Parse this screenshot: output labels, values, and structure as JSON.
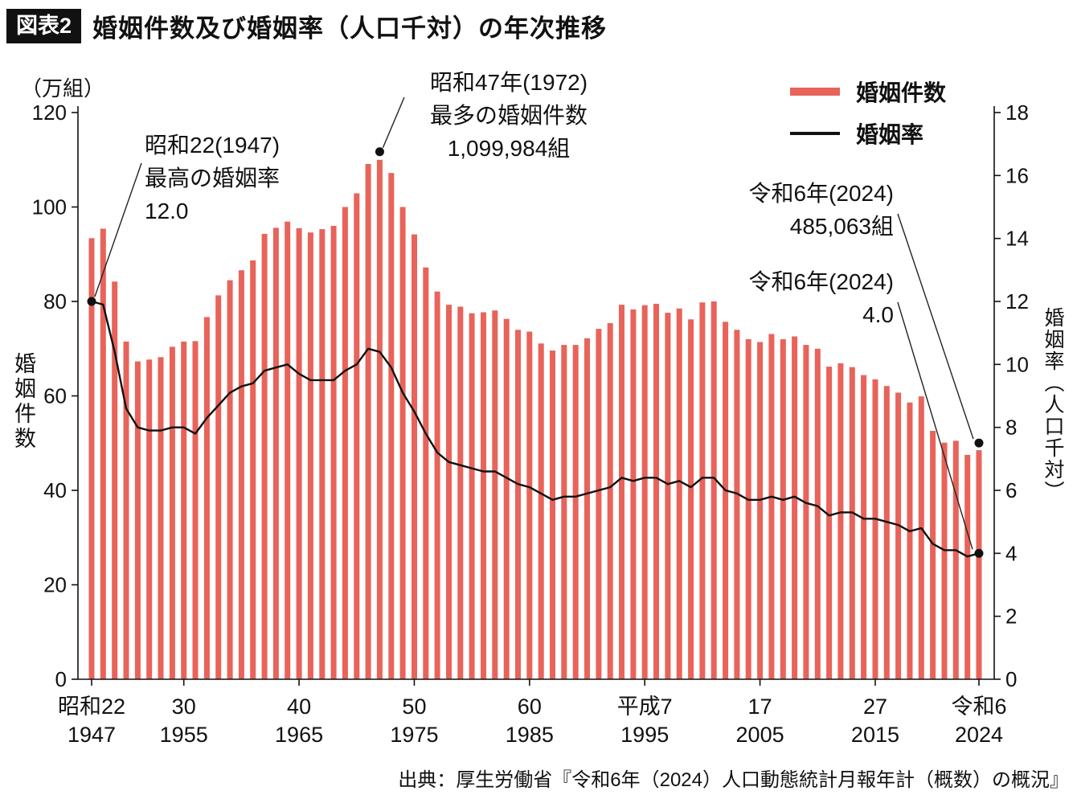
{
  "header": {
    "tag": "図表2",
    "title": "婚姻件数及び婚姻率（人口千対）の年次推移"
  },
  "legend": {
    "items": [
      {
        "label": "婚姻件数",
        "color": "#e8635a"
      },
      {
        "label": "婚姻率",
        "color": "#111111"
      }
    ]
  },
  "axis_left": {
    "unit": "（万組）",
    "label": "婚姻件数",
    "ticks": [
      0,
      20,
      40,
      60,
      80,
      100,
      120
    ]
  },
  "axis_right": {
    "label": "婚姻率（人口千対）",
    "ticks": [
      0,
      2,
      4,
      6,
      8,
      10,
      12,
      14,
      16,
      18
    ]
  },
  "x_axis": {
    "labels": [
      {
        "era": "昭和22",
        "year": "1947",
        "year_num": 1947
      },
      {
        "era": "30",
        "year": "1955",
        "year_num": 1955
      },
      {
        "era": "40",
        "year": "1965",
        "year_num": 1965
      },
      {
        "era": "50",
        "year": "1975",
        "year_num": 1975
      },
      {
        "era": "60",
        "year": "1985",
        "year_num": 1985
      },
      {
        "era": "平成7",
        "year": "1995",
        "year_num": 1995
      },
      {
        "era": "17",
        "year": "2005",
        "year_num": 2005
      },
      {
        "era": "27",
        "year": "2015",
        "year_num": 2015
      },
      {
        "era": "令和6",
        "year": "2024",
        "year_num": 2024
      }
    ]
  },
  "annotations": {
    "rate_1947": {
      "l1": "昭和22(1947)",
      "l2": "最高の婚姻率",
      "l3": "12.0"
    },
    "count_1972": {
      "l1": "昭和47年(1972)",
      "l2": "最多の婚姻件数",
      "l3": "1,099,984組"
    },
    "count_2024": {
      "l1": "令和6年(2024)",
      "l2": "485,063組"
    },
    "rate_2024": {
      "l1": "令和6年(2024)",
      "l2": "4.0"
    }
  },
  "source": "出典：厚生労働省『令和6年（2024）人口動態統計月報年計（概数）の概況』",
  "chart_data": {
    "type": "bar+line",
    "title": "婚姻件数及び婚姻率（人口千対）の年次推移",
    "x": [
      1947,
      1948,
      1949,
      1950,
      1951,
      1952,
      1953,
      1954,
      1955,
      1956,
      1957,
      1958,
      1959,
      1960,
      1961,
      1962,
      1963,
      1964,
      1965,
      1966,
      1967,
      1968,
      1969,
      1970,
      1971,
      1972,
      1973,
      1974,
      1975,
      1976,
      1977,
      1978,
      1979,
      1980,
      1981,
      1982,
      1983,
      1984,
      1985,
      1986,
      1987,
      1988,
      1989,
      1990,
      1991,
      1992,
      1993,
      1994,
      1995,
      1996,
      1997,
      1998,
      1999,
      2000,
      2001,
      2002,
      2003,
      2004,
      2005,
      2006,
      2007,
      2008,
      2009,
      2010,
      2011,
      2012,
      2013,
      2014,
      2015,
      2016,
      2017,
      2018,
      2019,
      2020,
      2021,
      2022,
      2023,
      2024
    ],
    "ylim_left": [
      0,
      120
    ],
    "ylim_right": [
      0,
      18
    ],
    "grid": false,
    "legend_position": "top-right",
    "series": [
      {
        "name": "婚姻件数",
        "type": "bar",
        "axis": "left",
        "unit": "万組",
        "color": "#e8635a",
        "values": [
          93.4,
          95.4,
          84.2,
          71.5,
          67.3,
          67.7,
          68.2,
          70.4,
          71.5,
          71.6,
          76.7,
          81.3,
          84.5,
          86.6,
          88.7,
          94.3,
          95.6,
          96.9,
          95.5,
          94.6,
          95.3,
          96.0,
          100.0,
          102.9,
          109.1,
          110.0,
          107.2,
          100.0,
          94.2,
          87.2,
          82.1,
          79.3,
          78.9,
          77.5,
          77.7,
          78.1,
          76.3,
          74.0,
          73.6,
          71.1,
          69.6,
          70.8,
          70.8,
          72.2,
          74.2,
          75.4,
          79.3,
          78.3,
          79.2,
          79.5,
          77.6,
          78.5,
          76.2,
          79.8,
          80.0,
          75.7,
          74.0,
          72.0,
          71.4,
          73.1,
          72.0,
          72.6,
          70.8,
          70.0,
          66.2,
          66.9,
          66.1,
          64.4,
          63.5,
          62.1,
          60.7,
          58.6,
          59.9,
          52.6,
          50.1,
          50.5,
          47.5,
          48.5
        ]
      },
      {
        "name": "婚姻率",
        "type": "line",
        "axis": "right",
        "unit": "人口千対",
        "color": "#111111",
        "values": [
          12.0,
          11.9,
          10.4,
          8.6,
          8.0,
          7.9,
          7.9,
          8.0,
          8.0,
          7.8,
          8.3,
          8.7,
          9.1,
          9.3,
          9.4,
          9.8,
          9.9,
          10.0,
          9.7,
          9.5,
          9.5,
          9.5,
          9.8,
          10.0,
          10.5,
          10.4,
          9.9,
          9.1,
          8.5,
          7.8,
          7.2,
          6.9,
          6.8,
          6.7,
          6.6,
          6.6,
          6.4,
          6.2,
          6.1,
          5.9,
          5.7,
          5.8,
          5.8,
          5.9,
          6.0,
          6.1,
          6.4,
          6.3,
          6.4,
          6.4,
          6.2,
          6.3,
          6.1,
          6.4,
          6.4,
          6.0,
          5.9,
          5.7,
          5.7,
          5.8,
          5.7,
          5.8,
          5.6,
          5.5,
          5.2,
          5.3,
          5.3,
          5.1,
          5.1,
          5.0,
          4.9,
          4.7,
          4.8,
          4.3,
          4.1,
          4.1,
          3.9,
          4.0
        ]
      }
    ],
    "highlights": [
      {
        "year": 1972,
        "label": "最多の婚姻件数 1,099,984組"
      },
      {
        "year": 1947,
        "label": "最高の婚姻率 12.0"
      },
      {
        "year": 2024,
        "label": "485,063組 / 婚姻率 4.0"
      }
    ]
  }
}
